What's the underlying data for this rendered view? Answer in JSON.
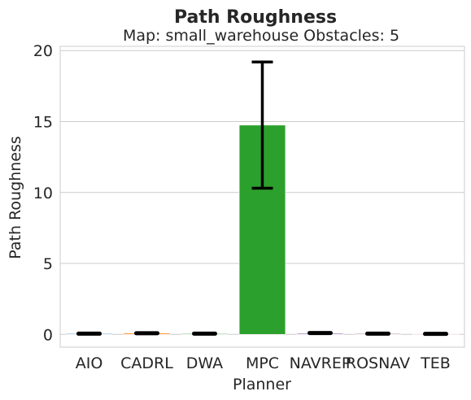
{
  "chart_data": {
    "type": "bar",
    "title": "Path Roughness",
    "subtitle": "Map: small_warehouse Obstacles: 5",
    "xlabel": "Planner",
    "ylabel": "Path Roughness",
    "categories": [
      "AIO",
      "CADRL",
      "DWA",
      "MPC",
      "NAVREP",
      "ROSNAV",
      "TEB"
    ],
    "tick_labels": [
      "AIO",
      "CADRL",
      "DWA",
      "MPC",
      "NAVREP",
      "ROSNAV",
      "TEB"
    ],
    "values": [
      0.05,
      0.08,
      0.05,
      14.75,
      0.07,
      0.05,
      0.04
    ],
    "error_low": [
      0.05,
      0.03,
      0.05,
      10.3,
      0.02,
      0.05,
      0.0
    ],
    "error_high": [
      0.05,
      0.13,
      0.06,
      19.2,
      0.17,
      0.06,
      0.07
    ],
    "colors": [
      "#1f77b4",
      "#ff7f0e",
      "#2ca02c",
      "#2ca02c",
      "#9467bd",
      "#8c564b",
      "#e377c2"
    ],
    "ylim": [
      -0.9,
      20.3
    ],
    "yticks": [
      0,
      5,
      10,
      15,
      20
    ],
    "grid": "y",
    "legend": "none"
  }
}
